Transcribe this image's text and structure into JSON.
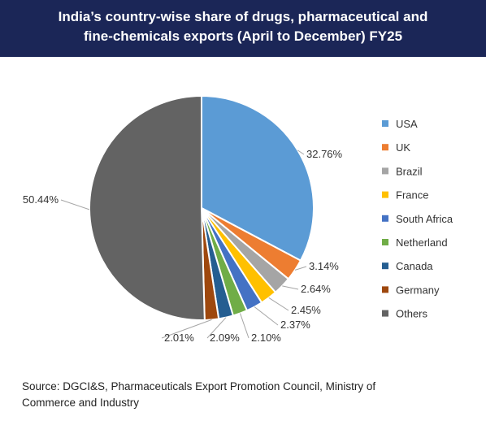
{
  "header": {
    "title_line1": "India’s country-wise share of drugs, pharmaceutical and",
    "title_line2": "fine-chemicals exports (April to December) FY25"
  },
  "chart_data": {
    "type": "pie",
    "title": "India’s country-wise share of drugs, pharmaceutical and fine-chemicals exports (April to December) FY25",
    "unit": "%",
    "legend_position": "right",
    "slices": [
      {
        "label": "USA",
        "value": 32.76,
        "display": "32.76%",
        "color": "#5b9bd5"
      },
      {
        "label": "UK",
        "value": 3.14,
        "display": "3.14%",
        "color": "#ed7d31"
      },
      {
        "label": "Brazil",
        "value": 2.64,
        "display": "2.64%",
        "color": "#a5a5a5"
      },
      {
        "label": "France",
        "value": 2.45,
        "display": "2.45%",
        "color": "#ffc000"
      },
      {
        "label": "South Africa",
        "value": 2.37,
        "display": "2.37%",
        "color": "#4472c4"
      },
      {
        "label": "Netherland",
        "value": 2.1,
        "display": "2.10%",
        "color": "#70ad47"
      },
      {
        "label": "Canada",
        "value": 2.09,
        "display": "2.09%",
        "color": "#255e91"
      },
      {
        "label": "Germany",
        "value": 2.01,
        "display": "2.01%",
        "color": "#9e480e"
      },
      {
        "label": "Others",
        "value": 50.44,
        "display": "50.44%",
        "color": "#636363"
      }
    ]
  },
  "footer": {
    "source_line1": "Source: DGCI&S, Pharmaceuticals Export Promotion Council, Ministry of",
    "source_line2": "Commerce and Industry"
  }
}
